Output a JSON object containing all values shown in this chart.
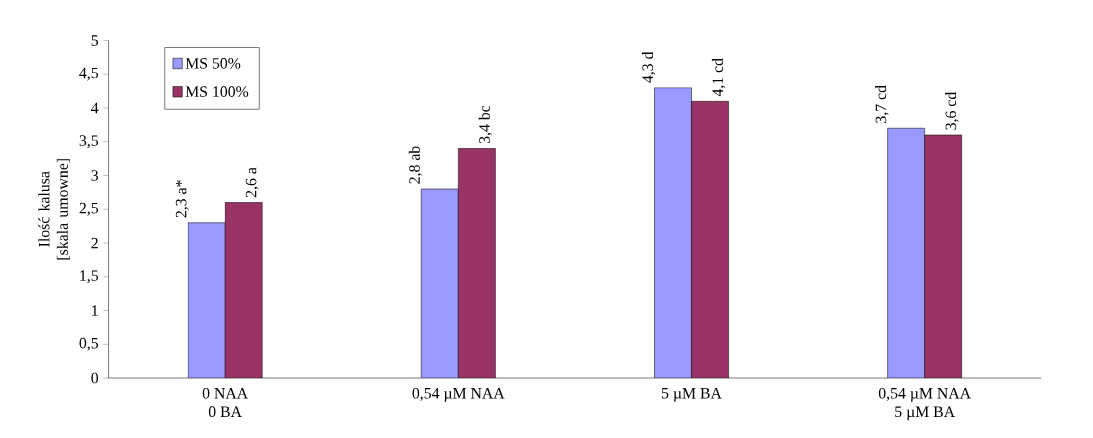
{
  "chart_data": {
    "type": "bar",
    "ylabel": "Ilość kalusa [skala umowne]",
    "categories": [
      "0 NAA\n0 BA",
      "0,54 µM NAA",
      "5 µM BA",
      "0,54 µM NAA\n5 µM BA"
    ],
    "series": [
      {
        "name": "MS 50%",
        "color": "#9999ff",
        "values": [
          2.3,
          2.8,
          4.3,
          3.7
        ],
        "value_labels": [
          "2,3 a*",
          "2,8 ab",
          "4,3 d",
          "3,7 cd"
        ]
      },
      {
        "name": "MS 100%",
        "color": "#993366",
        "values": [
          2.6,
          3.4,
          4.1,
          3.6
        ],
        "value_labels": [
          "2,6 a",
          "3,4 bc",
          "4,1 cd",
          "3,6 cd"
        ]
      }
    ],
    "ylim": [
      0,
      5
    ],
    "yticks": [
      0,
      {
        "value": 0.5,
        "label": "0,5"
      },
      1,
      {
        "value": 1.5,
        "label": "1,5"
      },
      2,
      {
        "value": 2.5,
        "label": "2,5"
      },
      3,
      {
        "value": 3.5,
        "label": "3,5"
      },
      4,
      {
        "value": 4.5,
        "label": "4,5"
      },
      5
    ],
    "legend": "top left",
    "grid": false
  }
}
